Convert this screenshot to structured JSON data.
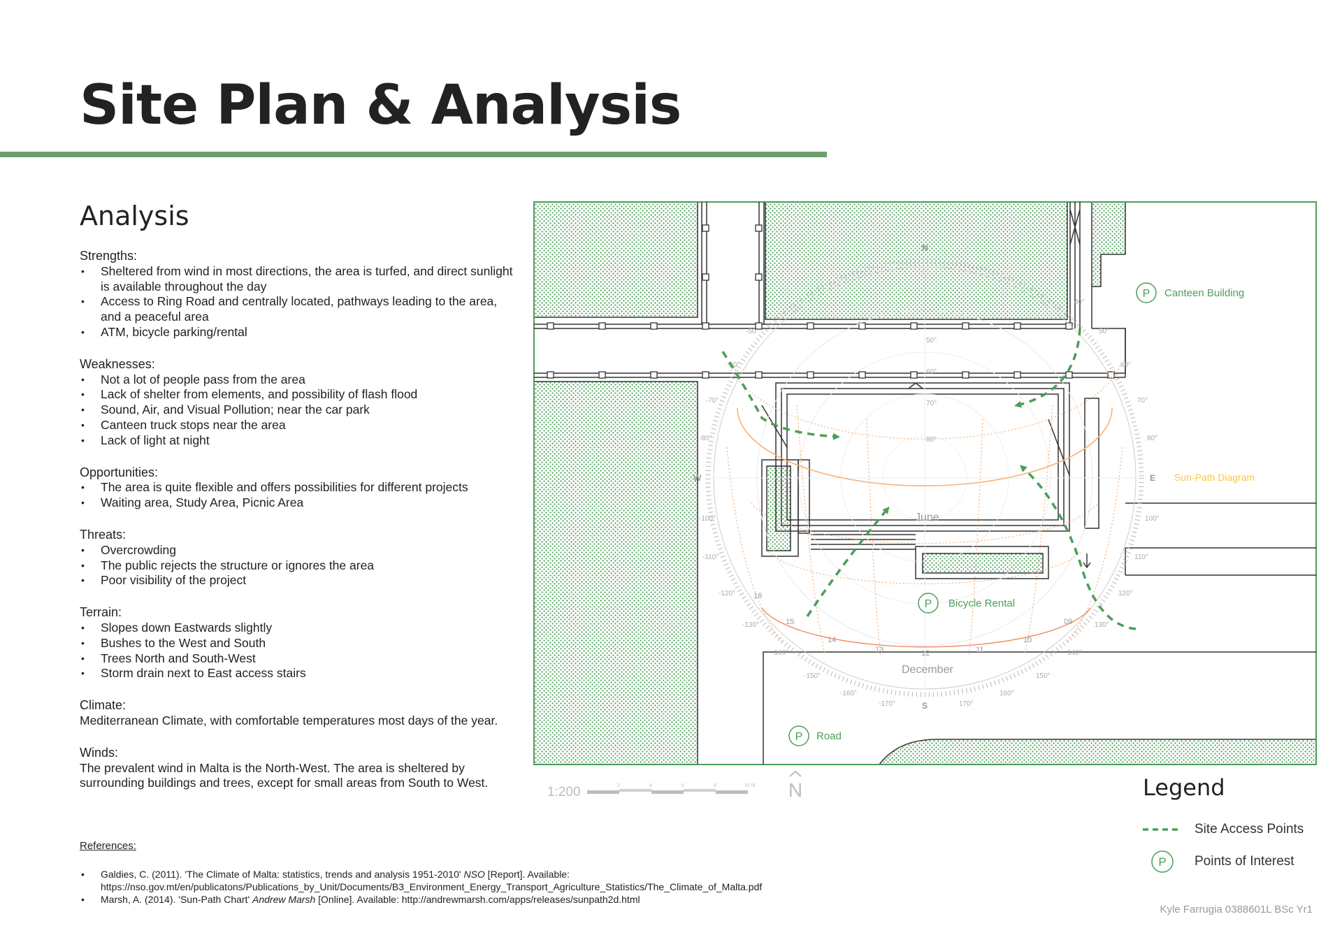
{
  "page": {
    "title": "Site Plan & Analysis",
    "analysis_heading": "Analysis",
    "accent_color": "#6aa06f",
    "credit": "Kyle Farrugia 0388601L BSc Yr1"
  },
  "analysis": {
    "strengths": {
      "title": "Strengths:",
      "items": [
        "Sheltered from wind in most directions, the area is turfed, and direct sunlight is available throughout the day",
        "Access to Ring Road and centrally located, pathways leading to the area, and a peaceful area",
        "ATM, bicycle parking/rental"
      ]
    },
    "weaknesses": {
      "title": "Weaknesses:",
      "items": [
        "Not a lot of people pass from the area",
        "Lack of shelter from elements, and possibility of flash flood",
        "Sound, Air, and Visual Pollution; near the car park",
        "Canteen truck stops near the area",
        "Lack of light at night"
      ]
    },
    "opportunities": {
      "title": "Opportunities:",
      "items": [
        "The area is quite flexible and offers possibilities for different projects",
        "Waiting area, Study Area, Picnic Area"
      ]
    },
    "threats": {
      "title": "Threats:",
      "items": [
        "Overcrowding",
        "The public rejects the structure or ignores the area",
        "Poor visibility of the project"
      ]
    },
    "terrain": {
      "title": "Terrain:",
      "items": [
        "Slopes down Eastwards slightly",
        "Bushes to the West and South",
        "Trees North and South-West",
        "Storm drain next to East access stairs"
      ]
    },
    "climate": {
      "title": "Climate:",
      "text": "Mediterranean Climate, with comfortable temperatures most days of the year."
    },
    "winds": {
      "title": "Winds:",
      "text": "The prevalent wind in Malta is the North-West. The area is sheltered by surrounding buildings and trees, except for small areas from South to West."
    }
  },
  "references": {
    "title": "References:",
    "items": [
      {
        "pre": "Galdies, C. (2011). 'The Climate of Malta: statistics, trends and analysis 1951-2010' ",
        "em": "NSO",
        "post": " [Report]. Available: https://nso.gov.mt/en/publicatons/Publications_by_Unit/Documents/B3_Environment_Energy_Transport_Agriculture_Statistics/The_Climate_of_Malta.pdf"
      },
      {
        "pre": "Marsh, A. (2014). 'Sun-Path Chart' ",
        "em": "Andrew Marsh",
        "post": " [Online]. Available: http://andrewmarsh.com/apps/releases/sunpath2d.html"
      }
    ]
  },
  "plan": {
    "poi": {
      "canteen": "Canteen Building",
      "bicycle": "Bicycle Rental",
      "road": "Road",
      "marker": "P"
    },
    "sunpath": {
      "label": "Sun-Path Diagram",
      "june": "June",
      "december": "December",
      "compass": {
        "n": "N",
        "e": "E",
        "s": "S",
        "w": "W"
      },
      "hours": [
        "16",
        "15",
        "14",
        "13",
        "12",
        "11",
        "10",
        "09"
      ],
      "azimuth_labels": [
        "-50°",
        "-60°",
        "-70°",
        "-80°",
        "-90°",
        "-100°",
        "-110°",
        "-120°",
        "-130°",
        "-140°",
        "-150°",
        "-160°",
        "-170°",
        "170°",
        "160°",
        "150°",
        "140°",
        "130°",
        "120°",
        "110°",
        "100°",
        "80°",
        "70°",
        "60°",
        "50°",
        "40°"
      ],
      "altitude_labels": [
        "50°",
        "60°",
        "70°",
        "80°"
      ],
      "colors": {
        "path": "#f7b27a",
        "summer": "#f08a5d",
        "scale": "#b8b8b8",
        "label": "#f5c94a"
      }
    },
    "scale": {
      "ratio": "1:200",
      "ticks": [
        "2",
        "4",
        "6",
        "8",
        "10 M"
      ]
    },
    "north_symbol": "N",
    "colors": {
      "green": "#4a9e58",
      "hatch_fill": "#ffffff",
      "line": "#333333"
    }
  },
  "legend": {
    "title": "Legend",
    "access": "Site Access Points",
    "poi": "Points of Interest",
    "marker": "P"
  }
}
